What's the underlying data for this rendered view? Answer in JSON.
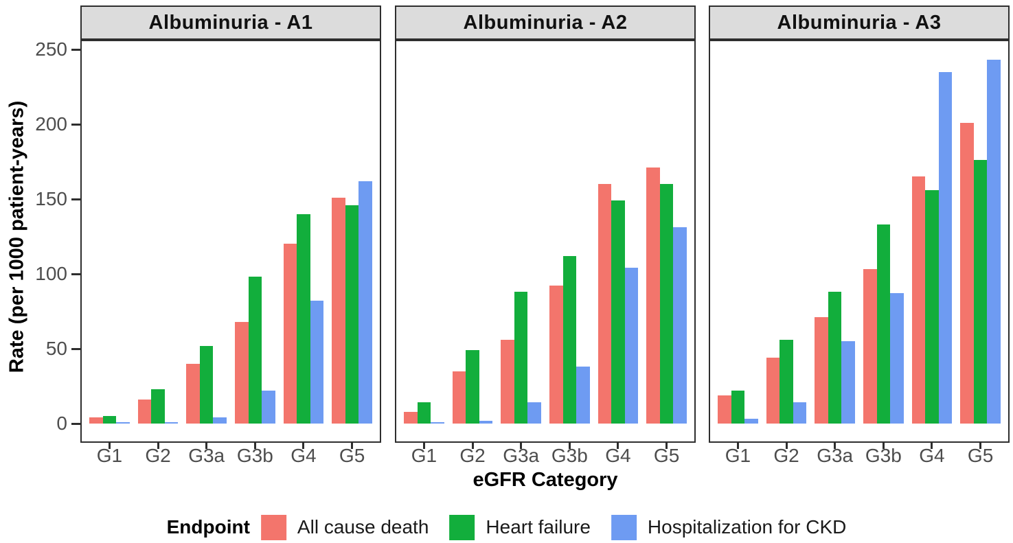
{
  "colors": {
    "all_cause_death": "#F3756C",
    "heart_failure": "#12AE3C",
    "hospitalization_ckd": "#6E9BF2",
    "strip_background": "#DCDCDC",
    "panel_border": "#2E2E2E",
    "tick_label": "#4D4D4D"
  },
  "y_axis": {
    "title": "Rate (per 1000 patient-years)",
    "ticks": [
      0,
      50,
      100,
      150,
      200,
      250
    ]
  },
  "x_axis": {
    "title": "eGFR Category",
    "categories": [
      "G1",
      "G2",
      "G3a",
      "G3b",
      "G4",
      "G5"
    ]
  },
  "legend": {
    "title": "Endpoint",
    "entries": [
      {
        "label": "All cause death",
        "color": "#F3756C"
      },
      {
        "label": "Heart failure",
        "color": "#12AE3C"
      },
      {
        "label": "Hospitalization for CKD",
        "color": "#6E9BF2"
      }
    ]
  },
  "chart_data": {
    "type": "bar",
    "grouping": "grouped",
    "grid": false,
    "legend_position": "bottom",
    "ylim": [
      0,
      250
    ],
    "ylabel": "Rate (per 1000 patient-years)",
    "xlabel": "eGFR Category",
    "categories": [
      "G1",
      "G2",
      "G3a",
      "G3b",
      "G4",
      "G5"
    ],
    "facets": [
      {
        "title": "Albuminuria - A1",
        "series": [
          {
            "name": "All cause death",
            "values": [
              4,
              16,
              40,
              68,
              120,
              151
            ]
          },
          {
            "name": "Heart failure",
            "values": [
              5,
              23,
              52,
              98,
              140,
              146
            ]
          },
          {
            "name": "Hospitalization for CKD",
            "values": [
              1,
              1,
              4,
              22,
              82,
              162
            ]
          }
        ]
      },
      {
        "title": "Albuminuria - A2",
        "series": [
          {
            "name": "All cause death",
            "values": [
              8,
              35,
              56,
              92,
              160,
              171
            ]
          },
          {
            "name": "Heart failure",
            "values": [
              14,
              49,
              88,
              112,
              149,
              160
            ]
          },
          {
            "name": "Hospitalization for CKD",
            "values": [
              1,
              2,
              14,
              38,
              104,
              131
            ]
          }
        ]
      },
      {
        "title": "Albuminuria - A3",
        "series": [
          {
            "name": "All cause death",
            "values": [
              19,
              44,
              71,
              103,
              165,
              201
            ]
          },
          {
            "name": "Heart failure",
            "values": [
              22,
              56,
              88,
              133,
              156,
              176
            ]
          },
          {
            "name": "Hospitalization for CKD",
            "values": [
              3,
              14,
              55,
              87,
              235,
              243
            ]
          }
        ]
      }
    ]
  }
}
